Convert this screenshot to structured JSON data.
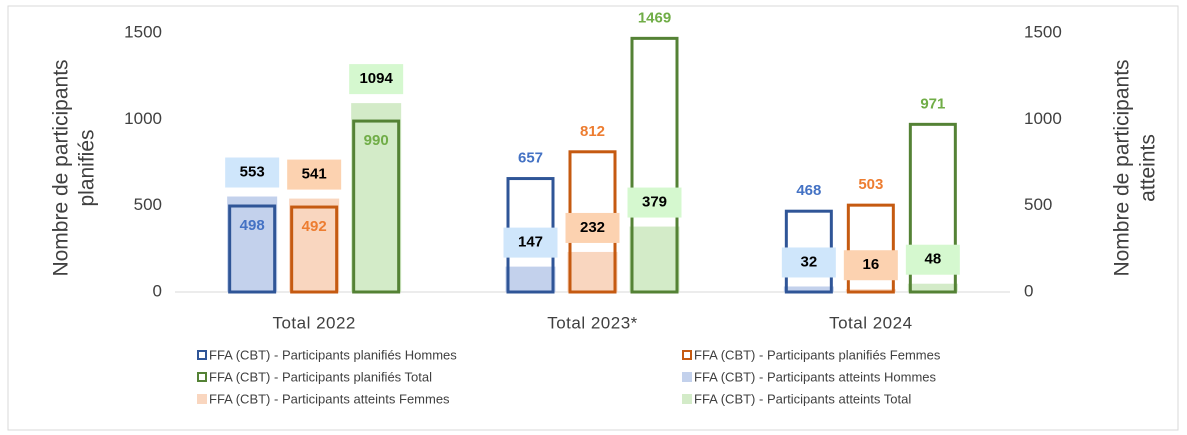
{
  "chart_data": {
    "type": "bar",
    "y_label": [
      "Nombre de participants",
      "planifiés"
    ],
    "y2_label": [
      "Nombre de participants",
      "atteints"
    ],
    "categories": [
      "Total 2022",
      "Total 2023*",
      "Total 2024"
    ],
    "ylim": [
      0,
      1500
    ],
    "yticks": [
      0,
      500,
      1000,
      1500
    ],
    "y2lim": [
      0,
      1500
    ],
    "y2ticks": [
      0,
      500,
      1000,
      1500
    ],
    "series": [
      {
        "name": "FFA (CBT) - Participants planifiés Hommes",
        "color": "#2f5597",
        "label_color": "#4472c4",
        "values": [
          498,
          657,
          468
        ]
      },
      {
        "name": "FFA (CBT) - Participants planifiés Femmes",
        "color": "#c55a11",
        "label_color": "#ed7d31",
        "values": [
          492,
          812,
          503
        ]
      },
      {
        "name": "FFA (CBT) - Participants planifiés Total",
        "color": "#548235",
        "label_color": "#70ad47",
        "values": [
          990,
          1469,
          971
        ]
      },
      {
        "name": "FFA (CBT)  - Participants atteints Hommes",
        "color": "#c3d1ec",
        "label_bg": "#cfe6fb",
        "axis": "y2",
        "values": [
          553,
          147,
          32
        ]
      },
      {
        "name": "FFA (CBT)  - Participants atteints Femmes",
        "color": "#f9d6bf",
        "label_bg": "#fcd2b0",
        "axis": "y2",
        "values": [
          541,
          232,
          16
        ]
      },
      {
        "name": "FFA (CBT)  - Participants atteints Total",
        "color": "#d3ebc8",
        "label_bg": "#d5f8cf",
        "axis": "y2",
        "values": [
          1094,
          379,
          48
        ]
      }
    ]
  }
}
